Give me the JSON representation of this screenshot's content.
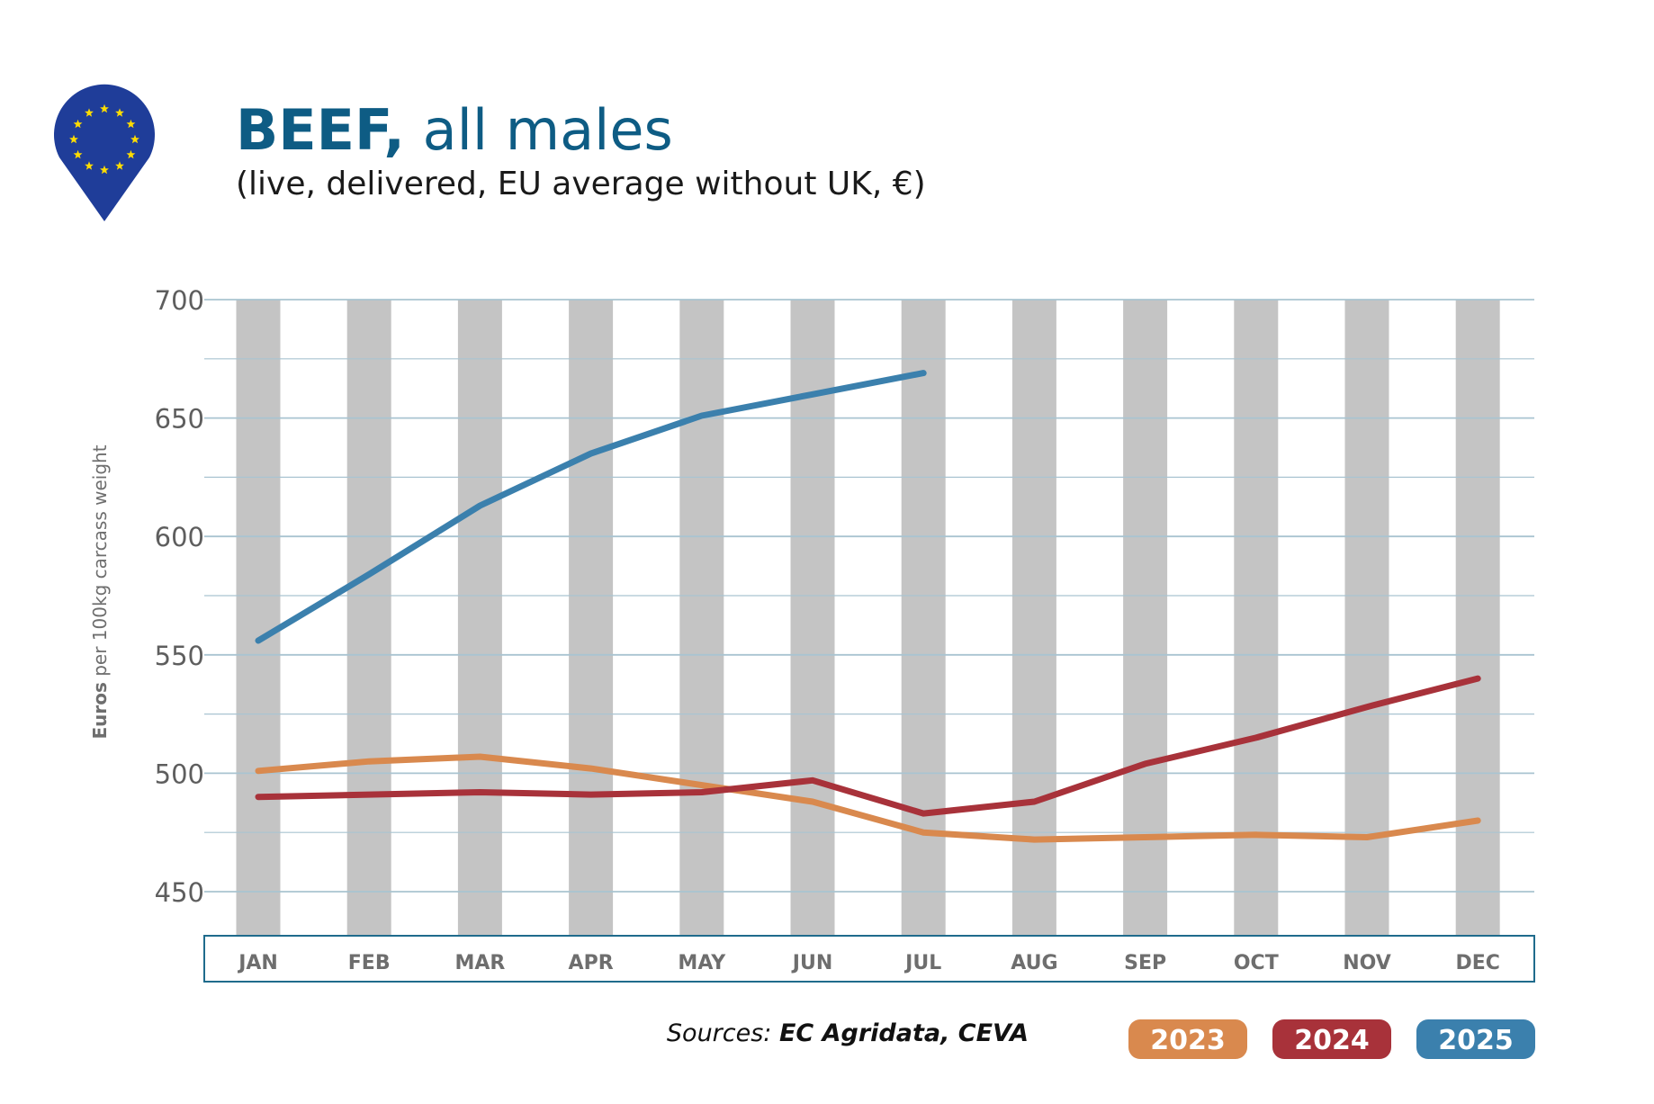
{
  "header": {
    "title_bold": "BEEF,",
    "title_rest": " all males",
    "subtitle": "(live, delivered, EU average without UK, €)"
  },
  "source": {
    "prefix": "Sources: ",
    "names": "EC Agridata, CEVA"
  },
  "icons": {
    "logo": "eu-flag-map-pin-icon"
  },
  "colors": {
    "title": "#0e5c84",
    "gridline": "#a9c4d1",
    "stripe": "#c4c4c4",
    "axis_box": "#1f6b8c",
    "eu_blue": "#1f3d99",
    "eu_star": "#ffdd00"
  },
  "chart_data": {
    "type": "line",
    "title": "BEEF, all males",
    "subtitle": "(live, delivered, EU average without UK, €)",
    "ylabel_bold": "Euros",
    "ylabel_rest": " per 100kg carcass weight",
    "xlabel": "",
    "categories": [
      "JAN",
      "FEB",
      "MAR",
      "APR",
      "MAY",
      "JUN",
      "JUL",
      "AUG",
      "SEP",
      "OCT",
      "NOV",
      "DEC"
    ],
    "ylim": [
      430,
      700
    ],
    "yticks": [
      450,
      500,
      550,
      600,
      650,
      700
    ],
    "grid": true,
    "legend_position": "bottom-right",
    "series": [
      {
        "name": "2023",
        "color": "#d9894e",
        "values": [
          501,
          505,
          507,
          502,
          495,
          488,
          475,
          472,
          473,
          474,
          473,
          480
        ]
      },
      {
        "name": "2024",
        "color": "#a8323a",
        "values": [
          490,
          491,
          492,
          491,
          492,
          497,
          483,
          488,
          504,
          515,
          528,
          540
        ]
      },
      {
        "name": "2025",
        "color": "#3b80ad",
        "values": [
          556,
          584,
          613,
          635,
          651,
          660,
          669,
          null,
          null,
          null,
          null,
          null
        ]
      }
    ]
  }
}
